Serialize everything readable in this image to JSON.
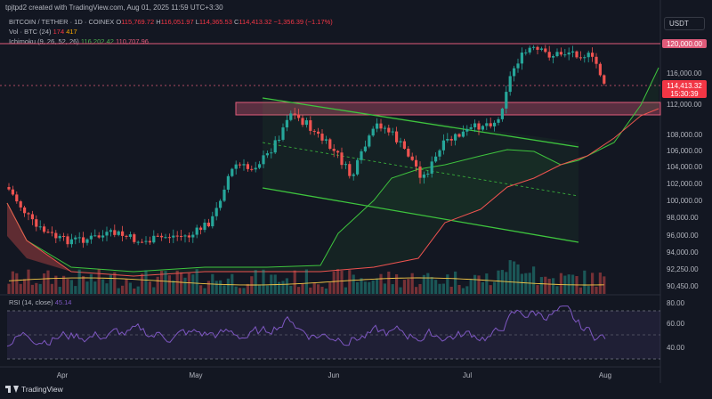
{
  "header": {
    "credit": "tpjtpd2 created with TradingView.com, Aug 01, 2025 11:59 UTC+3:30"
  },
  "legend": {
    "symbol": "BITCOIN / TETHER · 1D · COINEX",
    "o_label": "O",
    "o_value": "115,769.72",
    "h_label": "H",
    "h_value": "116,051.97",
    "l_label": "L",
    "l_value": "114,365.53",
    "c_label": "C",
    "c_value": "114,413.32",
    "change": "−1,356.39 (−1.17%)",
    "vol_label": "Vol · BTC (24)",
    "vol_value1": "174",
    "vol_value2": "417",
    "ichimoku_label": "Ichimoku (9, 26, 52, 26)",
    "ichimoku_value1": "116,202.42",
    "ichimoku_value2": "110,707.96"
  },
  "currency_button": "USDT",
  "price_labels": {
    "level_120k": "120,000.00",
    "last_price": "114,413.32",
    "countdown": "15:30:39"
  },
  "rsi": {
    "label": "RSI (14, close)",
    "value": "45.14"
  },
  "footer": {
    "brand": "TradingView"
  },
  "colors": {
    "background": "#131722",
    "bull": "#26a69a",
    "bear": "#ef5350",
    "resistance": "#e05b7a",
    "channel": "#3ec43e",
    "rsi": "#7e57c2"
  },
  "chart_data": {
    "type": "candlestick",
    "x_ticks": [
      "Apr",
      "May",
      "Jun",
      "Jul",
      "Aug"
    ],
    "price_ticks": [
      "116,000.00",
      "112,000.00",
      "108,000.00",
      "106,000.00",
      "104,000.00",
      "102,000.00",
      "100,000.00",
      "98,000.00",
      "96,000.00",
      "94,000.00",
      "92,250.00",
      "90,450.00"
    ],
    "rsi_ticks": [
      "80.00",
      "60.00",
      "40.00"
    ],
    "rsi_levels": [
      70,
      50,
      30
    ],
    "resistance_level": 120000,
    "support_zone": [
      110800,
      112600
    ],
    "channel": {
      "upper": [
        [
          "May 10",
          113200
        ],
        [
          "Jul 20",
          106000
        ]
      ],
      "lower": [
        [
          "May 10",
          102500
        ],
        [
          "Jul 20",
          95100
        ]
      ]
    },
    "price_range": [
      88900,
      125000
    ],
    "rsi_range": [
      20,
      85
    ]
  }
}
